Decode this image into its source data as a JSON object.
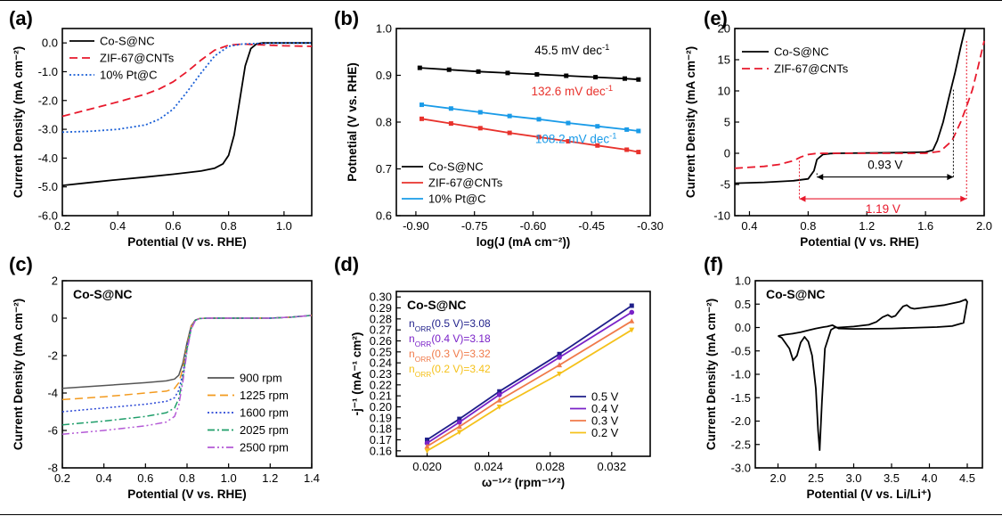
{
  "chart_data": [
    {
      "panel": "(a)",
      "type": "line",
      "xlabel": "Potential (V vs. RHE)",
      "ylabel": "Current Density (mA cm⁻²)",
      "xlim": [
        0.2,
        1.1
      ],
      "ylim": [
        -6.0,
        0.5
      ],
      "xticks": [
        0.2,
        0.4,
        0.6,
        0.8,
        1.0
      ],
      "yticks": [
        -6.0,
        -5.0,
        -4.0,
        -3.0,
        -2.0,
        -1.0,
        0.0
      ],
      "tick_decimals": [
        1,
        1
      ],
      "grid": false,
      "legend": "top-left",
      "series": [
        {
          "name": "Co-S@NC",
          "color": "#000000",
          "dash": "solid",
          "x": [
            0.2,
            0.3,
            0.4,
            0.5,
            0.6,
            0.7,
            0.75,
            0.78,
            0.8,
            0.82,
            0.84,
            0.86,
            0.88,
            0.9,
            0.92,
            1.0,
            1.1
          ],
          "y": [
            -4.95,
            -4.85,
            -4.75,
            -4.66,
            -4.56,
            -4.45,
            -4.35,
            -4.2,
            -3.9,
            -3.2,
            -2.0,
            -0.8,
            -0.2,
            -0.04,
            0.0,
            0.0,
            0.0
          ]
        },
        {
          "name": "ZIF-67@CNTs",
          "color": "#e8192c",
          "dash": "dashed",
          "x": [
            0.2,
            0.3,
            0.4,
            0.5,
            0.55,
            0.6,
            0.65,
            0.7,
            0.75,
            0.8,
            0.85,
            0.9,
            1.0,
            1.1
          ],
          "y": [
            -2.55,
            -2.3,
            -2.05,
            -1.78,
            -1.6,
            -1.35,
            -1.0,
            -0.6,
            -0.25,
            -0.08,
            -0.04,
            -0.06,
            -0.1,
            -0.12
          ]
        },
        {
          "name": "10% Pt@C",
          "color": "#1a5fd6",
          "dash": "dotted",
          "x": [
            0.2,
            0.3,
            0.4,
            0.5,
            0.55,
            0.6,
            0.65,
            0.7,
            0.75,
            0.8,
            0.85,
            0.9,
            1.0,
            1.1
          ],
          "y": [
            -3.1,
            -3.07,
            -3.0,
            -2.85,
            -2.65,
            -2.3,
            -1.7,
            -1.05,
            -0.45,
            -0.12,
            -0.04,
            -0.02,
            0.0,
            0.0
          ]
        }
      ]
    },
    {
      "panel": "(b)",
      "type": "line",
      "xlabel": "log(J (mA cm⁻²))",
      "ylabel": "Potnetial (V vs. RHE)",
      "xlim": [
        -0.95,
        -0.3
      ],
      "ylim": [
        0.6,
        1.0
      ],
      "xticks": [
        -0.9,
        -0.75,
        -0.6,
        -0.45,
        -0.3
      ],
      "yticks": [
        0.6,
        0.7,
        0.8,
        0.9,
        1.0
      ],
      "tick_decimals": [
        2,
        1
      ],
      "grid": false,
      "legend": "bottom-left",
      "series": [
        {
          "name": "Co-S@NC",
          "color": "#000000",
          "marker": "square",
          "x": [
            -0.89,
            -0.815,
            -0.74,
            -0.665,
            -0.59,
            -0.515,
            -0.44,
            -0.365,
            -0.33
          ],
          "y": [
            0.916,
            0.912,
            0.908,
            0.905,
            0.902,
            0.899,
            0.896,
            0.893,
            0.891
          ],
          "label": "45.5 mV dec⁻¹"
        },
        {
          "name": "ZIF-67@CNTs",
          "color": "#e8322c",
          "marker": "square",
          "x": [
            -0.885,
            -0.81,
            -0.735,
            -0.66,
            -0.585,
            -0.51,
            -0.435,
            -0.36,
            -0.33
          ],
          "y": [
            0.807,
            0.797,
            0.787,
            0.777,
            0.768,
            0.759,
            0.75,
            0.741,
            0.736
          ],
          "label": "132.6 mV dec⁻¹"
        },
        {
          "name": "10% Pt@C",
          "color": "#1a9be8",
          "marker": "square",
          "x": [
            -0.885,
            -0.81,
            -0.735,
            -0.66,
            -0.585,
            -0.51,
            -0.435,
            -0.36,
            -0.33
          ],
          "y": [
            0.837,
            0.829,
            0.821,
            0.813,
            0.806,
            0.798,
            0.791,
            0.784,
            0.781
          ],
          "label": "108.2 mV dec⁻¹"
        }
      ]
    },
    {
      "panel": "(e)",
      "type": "line",
      "xlabel": "Potential (V vs. RHE)",
      "ylabel": "Current Density (mA cm⁻²)",
      "xlim": [
        0.3,
        2.0
      ],
      "ylim": [
        -10,
        20
      ],
      "xticks": [
        0.4,
        0.8,
        1.2,
        1.6,
        2.0
      ],
      "yticks": [
        -10,
        -5,
        0,
        5,
        10,
        15,
        20
      ],
      "tick_decimals": [
        1,
        0
      ],
      "grid": false,
      "legend": "top-left",
      "series": [
        {
          "name": "Co-S@NC",
          "color": "#000000",
          "dash": "solid",
          "x": [
            0.3,
            0.5,
            0.7,
            0.8,
            0.84,
            0.86,
            0.9,
            0.95,
            1.0,
            1.2,
            1.4,
            1.6,
            1.65,
            1.68,
            1.72,
            1.76,
            1.8,
            1.84,
            1.87
          ],
          "y": [
            -4.8,
            -4.65,
            -4.4,
            -4.1,
            -2.8,
            -1.0,
            -0.2,
            -0.05,
            0.0,
            0.05,
            0.1,
            0.2,
            0.5,
            2.0,
            5.0,
            9.0,
            12.8,
            17.0,
            20.0
          ]
        },
        {
          "name": "ZIF-67@CNTs",
          "color": "#e8192c",
          "dash": "dashed",
          "x": [
            0.3,
            0.5,
            0.6,
            0.7,
            0.75,
            0.8,
            0.85,
            0.9,
            1.2,
            1.6,
            1.7,
            1.78,
            1.84,
            1.88,
            1.92,
            1.96,
            2.0
          ],
          "y": [
            -2.4,
            -2.1,
            -1.8,
            -1.2,
            -0.6,
            -0.2,
            -0.05,
            0.0,
            0.0,
            0.0,
            0.3,
            2.0,
            5.0,
            7.5,
            10.2,
            14.0,
            18.0
          ]
        }
      ],
      "annotations": [
        {
          "text": "0.93 V",
          "x1": 0.86,
          "x2": 1.79,
          "y": -3.8,
          "color": "#000000"
        },
        {
          "text": "1.19 V",
          "x1": 0.74,
          "x2": 1.88,
          "y": -7.3,
          "color": "#e8192c"
        }
      ]
    },
    {
      "panel": "(c)",
      "type": "line",
      "title": "Co-S@NC",
      "xlabel": "Potential (V vs. RHE)",
      "ylabel": "Current Density (mA cm⁻²)",
      "xlim": [
        0.2,
        1.4
      ],
      "ylim": [
        -8,
        2
      ],
      "xticks": [
        0.2,
        0.4,
        0.6,
        0.8,
        1.0,
        1.2,
        1.4
      ],
      "yticks": [
        -8,
        -6,
        -4,
        -2,
        0,
        2
      ],
      "tick_decimals": [
        1,
        0
      ],
      "grid": false,
      "legend": "bottom-right",
      "x": [
        0.2,
        0.4,
        0.6,
        0.7,
        0.74,
        0.76,
        0.78,
        0.8,
        0.82,
        0.84,
        0.86,
        0.9,
        1.0,
        1.2,
        1.3,
        1.4
      ],
      "series": [
        {
          "name": "900 rpm",
          "color": "#555555",
          "dash": "solid",
          "y": [
            -3.75,
            -3.6,
            -3.45,
            -3.35,
            -3.25,
            -3.05,
            -2.4,
            -1.3,
            -0.4,
            -0.1,
            -0.02,
            0.0,
            0.0,
            0.0,
            0.05,
            0.15
          ]
        },
        {
          "name": "1225 rpm",
          "color": "#f39a1e",
          "dash": "dashed",
          "y": [
            -4.35,
            -4.2,
            -4.0,
            -3.9,
            -3.75,
            -3.45,
            -2.7,
            -1.45,
            -0.45,
            -0.1,
            -0.02,
            0.0,
            0.0,
            0.0,
            0.05,
            0.15
          ]
        },
        {
          "name": "1600 rpm",
          "color": "#2a47d6",
          "dash": "dotted",
          "y": [
            -5.0,
            -4.8,
            -4.6,
            -4.45,
            -4.25,
            -3.85,
            -2.95,
            -1.55,
            -0.5,
            -0.12,
            -0.02,
            0.0,
            0.0,
            0.0,
            0.05,
            0.15
          ]
        },
        {
          "name": "2025 rpm",
          "color": "#1f9e6a",
          "dash": "dashdot",
          "y": [
            -5.7,
            -5.5,
            -5.25,
            -5.05,
            -4.8,
            -4.3,
            -3.2,
            -1.65,
            -0.55,
            -0.12,
            -0.02,
            0.0,
            0.0,
            0.0,
            0.05,
            0.15
          ]
        },
        {
          "name": "2500 rpm",
          "color": "#b45ad6",
          "dash": "dashdotdot",
          "y": [
            -6.2,
            -6.0,
            -5.75,
            -5.55,
            -5.25,
            -4.65,
            -3.4,
            -1.75,
            -0.6,
            -0.13,
            -0.02,
            0.0,
            0.0,
            0.0,
            0.05,
            0.15
          ]
        }
      ]
    },
    {
      "panel": "(d)",
      "type": "line",
      "title": "Co-S@NC",
      "xlabel": "ω⁻¹ᐟ² (rpm⁻¹ᐟ²)",
      "ylabel": "-j⁻¹ (mA⁻¹ cm²)",
      "xlim": [
        0.018,
        0.0345
      ],
      "ylim": [
        0.155,
        0.305
      ],
      "xticks": [
        0.02,
        0.024,
        0.028,
        0.032
      ],
      "yticks": [
        0.16,
        0.17,
        0.18,
        0.19,
        0.2,
        0.21,
        0.22,
        0.23,
        0.24,
        0.25,
        0.26,
        0.27,
        0.28,
        0.29,
        0.3
      ],
      "tick_decimals": [
        3,
        2
      ],
      "grid": false,
      "legend": "bottom-right",
      "x": [
        0.02,
        0.0221,
        0.0247,
        0.0286,
        0.0333
      ],
      "series": [
        {
          "name": "0.5 V",
          "color": "#1f1f8a",
          "marker": "square",
          "y": [
            0.17,
            0.189,
            0.214,
            0.248,
            0.292
          ]
        },
        {
          "name": "0.4 V",
          "color": "#7a22c8",
          "marker": "circle",
          "y": [
            0.167,
            0.186,
            0.211,
            0.245,
            0.286
          ]
        },
        {
          "name": "0.3 V",
          "color": "#f07a4a",
          "marker": "triangle",
          "y": [
            0.164,
            0.182,
            0.206,
            0.238,
            0.278
          ]
        },
        {
          "name": "0.2 V",
          "color": "#f5c11a",
          "marker": "triangle-down",
          "y": [
            0.16,
            0.177,
            0.2,
            0.23,
            0.27
          ]
        }
      ],
      "n_labels": [
        {
          "voltage": "0.5 V",
          "value": "3.08",
          "color": "#1f1f8a"
        },
        {
          "voltage": "0.4 V",
          "value": "3.18",
          "color": "#7a22c8"
        },
        {
          "voltage": "0.3 V",
          "value": "3.32",
          "color": "#f07a4a"
        },
        {
          "voltage": "0.2 V",
          "value": "3.42",
          "color": "#f5c11a"
        }
      ],
      "n_symbol": "n",
      "n_sub": "ORR"
    },
    {
      "panel": "(f)",
      "type": "line",
      "title": "Co-S@NC",
      "xlabel": "Potential (V vs. Li/Li⁺)",
      "ylabel": "Current Density (mA cm⁻²)",
      "xlim": [
        1.7,
        4.7
      ],
      "ylim": [
        -3.0,
        1.0
      ],
      "xticks": [
        2.0,
        2.5,
        3.0,
        3.5,
        4.0,
        4.5
      ],
      "yticks": [
        -3.0,
        -2.5,
        -2.0,
        -1.5,
        -1.0,
        -0.5,
        0.0,
        0.5,
        1.0
      ],
      "tick_decimals": [
        1,
        1
      ],
      "grid": false,
      "series": [
        {
          "name": "",
          "color": "#000000",
          "dash": "solid",
          "x": [
            2.0,
            2.05,
            2.15,
            2.2,
            2.25,
            2.3,
            2.35,
            2.4,
            2.45,
            2.5,
            2.53,
            2.55,
            2.58,
            2.62,
            2.7,
            2.75,
            2.8,
            3.0,
            3.2,
            3.3,
            3.38,
            3.45,
            3.5,
            3.55,
            3.6,
            3.65,
            3.7,
            3.75,
            3.8,
            4.0,
            4.2,
            4.4,
            4.48,
            4.5,
            4.45,
            4.3,
            4.1,
            3.9,
            3.5,
            3.0,
            2.8,
            2.72,
            2.65,
            2.6,
            2.5,
            2.4,
            2.3,
            2.2,
            2.1,
            2.0
          ],
          "y": [
            -0.18,
            -0.22,
            -0.45,
            -0.7,
            -0.6,
            -0.32,
            -0.2,
            -0.3,
            -0.6,
            -1.3,
            -2.2,
            -2.62,
            -1.6,
            -0.45,
            -0.05,
            0.0,
            0.0,
            0.02,
            0.06,
            0.12,
            0.22,
            0.27,
            0.22,
            0.25,
            0.35,
            0.45,
            0.48,
            0.42,
            0.4,
            0.44,
            0.48,
            0.55,
            0.6,
            0.55,
            0.1,
            0.03,
            0.01,
            0.0,
            -0.02,
            -0.03,
            -0.02,
            0.05,
            0.02,
            0.01,
            -0.02,
            -0.06,
            -0.1,
            -0.13,
            -0.15,
            -0.18
          ]
        }
      ]
    }
  ]
}
